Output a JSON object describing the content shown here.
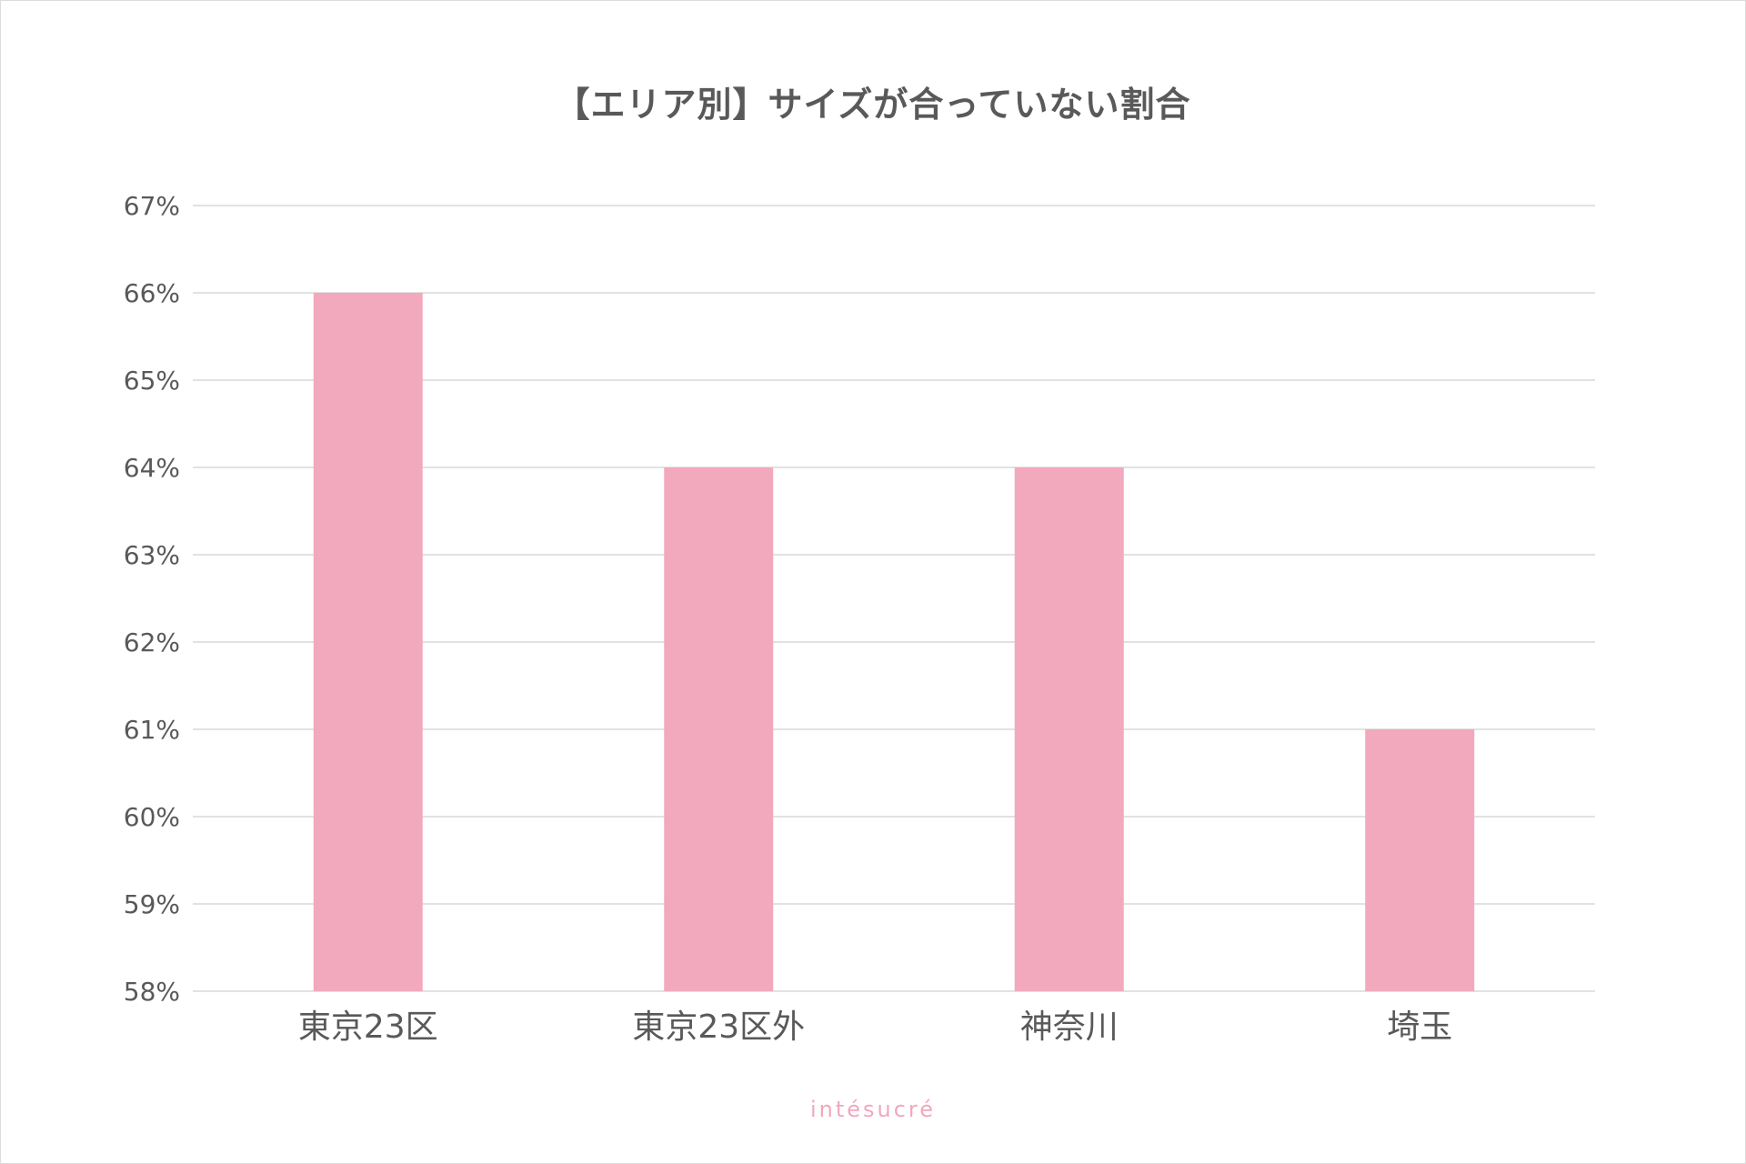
{
  "chart_data": {
    "type": "bar",
    "title": "【エリア別】サイズが合っていない割合",
    "categories": [
      "東京23区",
      "東京23区外",
      "神奈川",
      "埼玉"
    ],
    "series": [
      {
        "values": [
          66,
          64,
          64,
          61
        ]
      }
    ],
    "value_unit": "%",
    "ylim": [
      58,
      67
    ],
    "y_ticks": [
      "58%",
      "59%",
      "60%",
      "61%",
      "62%",
      "63%",
      "64%",
      "65%",
      "66%",
      "67%"
    ],
    "grid": true,
    "bar_color": "#f2a9bd",
    "grid_color": "#d9d9d9",
    "text_color": "#595959"
  },
  "brand": {
    "name": "intésucré",
    "color": "#f2a7bd"
  }
}
